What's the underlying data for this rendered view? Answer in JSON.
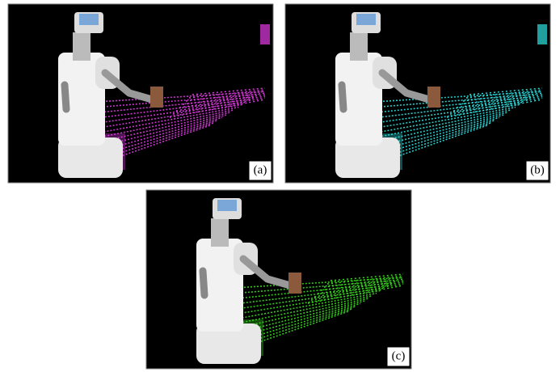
{
  "panels": [
    {
      "label": "(a)",
      "cloud_color": "#e23be6"
    },
    {
      "label": "(b)",
      "cloud_color": "#2fe3e3"
    },
    {
      "label": "(c)",
      "cloud_color": "#39e01f"
    }
  ]
}
